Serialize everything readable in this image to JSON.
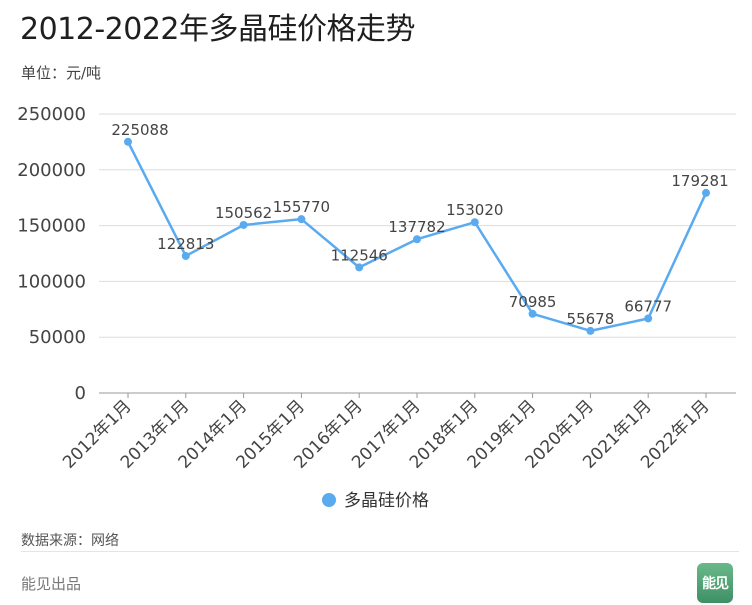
{
  "header": {
    "title": "2012-2022年多晶硅价格走势",
    "unit": "单位：元/吨"
  },
  "footer": {
    "source": "数据来源：网络",
    "brand": "能见出品",
    "logo_text": "能见"
  },
  "colors": {
    "series": "#5aaaf0",
    "grid": "#dddddd",
    "axis": "#444444"
  },
  "chart_data": {
    "type": "line",
    "categories": [
      "2012年1月",
      "2013年1月",
      "2014年1月",
      "2015年1月",
      "2016年1月",
      "2017年1月",
      "2018年1月",
      "2019年1月",
      "2020年1月",
      "2021年1月",
      "2022年1月"
    ],
    "series": [
      {
        "name": "多晶硅价格",
        "values": [
          225088,
          122813,
          150562,
          155770,
          112546,
          137782,
          153020,
          70985,
          55678,
          66777,
          179281
        ]
      }
    ],
    "y_ticks": [
      "0",
      "50000",
      "100000",
      "150000",
      "200000",
      "250000"
    ],
    "ylim": [
      0,
      250000
    ],
    "grid": true,
    "legend": "bottom-center",
    "data_labels": true
  }
}
